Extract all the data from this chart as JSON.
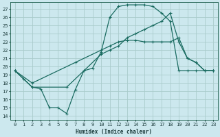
{
  "xlabel": "Humidex (Indice chaleur)",
  "bg_color": "#cce8ee",
  "grid_color": "#aacccc",
  "line_color": "#1a6b60",
  "xlim": [
    -0.5,
    23.5
  ],
  "ylim": [
    13.5,
    27.8
  ],
  "xticks": [
    0,
    1,
    2,
    3,
    4,
    5,
    6,
    7,
    8,
    9,
    10,
    11,
    12,
    13,
    14,
    15,
    16,
    17,
    18,
    19,
    20,
    21,
    22,
    23
  ],
  "yticks": [
    14,
    15,
    16,
    17,
    18,
    19,
    20,
    21,
    22,
    23,
    24,
    25,
    26,
    27
  ],
  "line1_x": [
    0,
    1,
    2,
    3,
    4,
    5,
    6,
    7,
    8,
    9,
    10,
    11,
    12,
    13,
    14,
    15,
    16,
    17,
    18,
    19,
    20,
    21,
    22,
    23
  ],
  "line1_y": [
    19.5,
    18.5,
    17.5,
    17.3,
    15.0,
    15.0,
    14.3,
    17.2,
    19.5,
    19.8,
    21.8,
    26.0,
    27.3,
    27.5,
    27.5,
    27.5,
    27.3,
    26.5,
    25.5,
    19.5,
    19.5,
    19.5,
    19.5,
    19.5
  ],
  "line2_x": [
    0,
    2,
    7,
    10,
    11,
    12,
    13,
    14,
    15,
    16,
    17,
    18,
    19,
    20,
    21,
    22,
    23
  ],
  "line2_y": [
    19.5,
    18.0,
    20.5,
    22.0,
    22.5,
    23.0,
    23.2,
    23.2,
    23.0,
    23.0,
    23.0,
    23.0,
    23.5,
    21.0,
    20.5,
    19.5,
    19.5
  ],
  "line3_x": [
    0,
    2,
    6,
    10,
    11,
    12,
    13,
    14,
    15,
    16,
    17,
    18,
    19,
    20,
    21,
    22,
    23
  ],
  "line3_y": [
    19.5,
    17.5,
    17.5,
    21.5,
    22.0,
    22.5,
    23.5,
    24.0,
    24.5,
    25.0,
    25.5,
    26.5,
    23.0,
    21.0,
    20.5,
    19.5,
    19.5
  ]
}
